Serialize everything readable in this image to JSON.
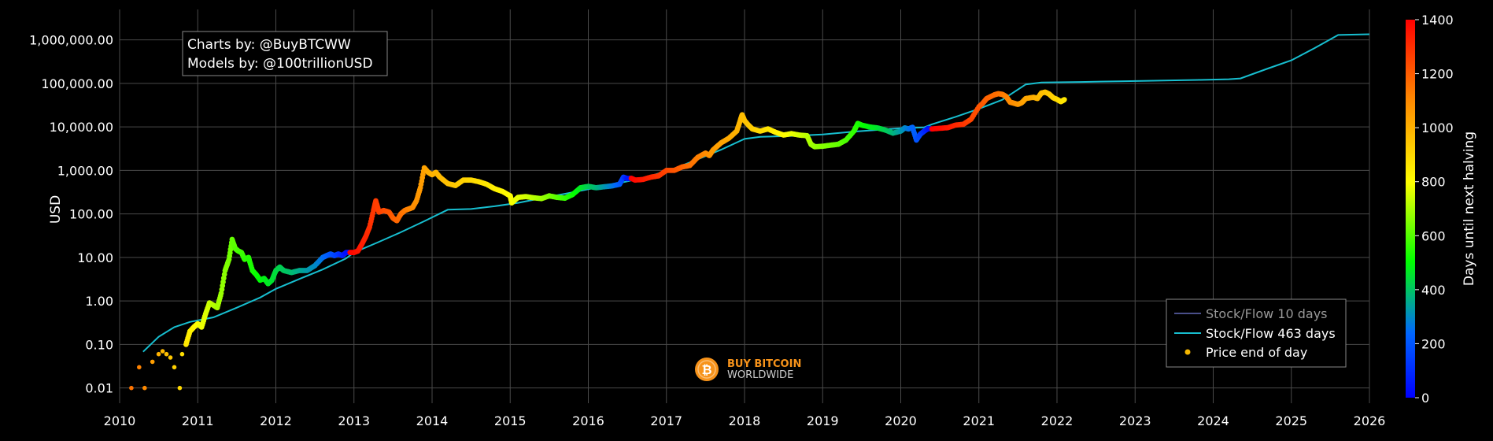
{
  "credits": {
    "line1": "Charts by: @BuyBTCWW",
    "line2": "Models by: @100trillionUSD"
  },
  "logo": {
    "line1": "BUY BITCOIN",
    "line2": "WORLDWIDE",
    "icon": "bitcoin-icon",
    "color": "#f7931a"
  },
  "chart_data": {
    "type": "scatter",
    "ylabel": "USD",
    "yscale": "log",
    "xlim": [
      2010,
      2026
    ],
    "ylim_log10": [
      -2.35,
      6.7
    ],
    "x_ticks": [
      "2010",
      "2011",
      "2012",
      "2013",
      "2014",
      "2015",
      "2016",
      "2017",
      "2018",
      "2019",
      "2020",
      "2021",
      "2022",
      "2023",
      "2024",
      "2025",
      "2026"
    ],
    "y_ticks": [
      {
        "value": 0.01,
        "label": "0.01"
      },
      {
        "value": 0.1,
        "label": "0.10"
      },
      {
        "value": 1,
        "label": "1.00"
      },
      {
        "value": 10,
        "label": "10.00"
      },
      {
        "value": 100,
        "label": "100.00"
      },
      {
        "value": 1000,
        "label": "1,000.00"
      },
      {
        "value": 10000,
        "label": "10,000.00"
      },
      {
        "value": 100000,
        "label": "100,000.00"
      },
      {
        "value": 1000000,
        "label": "1,000,000.00"
      }
    ],
    "grid": true,
    "legend_position": "bottom-right",
    "colorbar": {
      "title": "Days until next halving",
      "min": 0,
      "max": 1400,
      "ticks": [
        "0",
        "200",
        "400",
        "600",
        "800",
        "1000",
        "1200",
        "1400"
      ]
    },
    "series": [
      {
        "name": "Stock/Flow 10 days",
        "kind": "line",
        "color": "#4a4f8a",
        "points": []
      },
      {
        "name": "Stock/Flow 463 days",
        "kind": "line",
        "color": "#17becf",
        "points": [
          [
            2010.3,
            0.068
          ],
          [
            2010.5,
            0.15
          ],
          [
            2010.7,
            0.25
          ],
          [
            2010.9,
            0.33
          ],
          [
            2011.2,
            0.42
          ],
          [
            2011.5,
            0.7
          ],
          [
            2011.8,
            1.2
          ],
          [
            2012.0,
            1.9
          ],
          [
            2012.3,
            3.2
          ],
          [
            2012.6,
            5.3
          ],
          [
            2012.9,
            9.5
          ],
          [
            2013.0,
            13
          ],
          [
            2013.3,
            22
          ],
          [
            2013.6,
            38
          ],
          [
            2013.9,
            68
          ],
          [
            2014.2,
            125
          ],
          [
            2014.5,
            130
          ],
          [
            2014.8,
            150
          ],
          [
            2015.1,
            180
          ],
          [
            2015.4,
            230
          ],
          [
            2015.7,
            290
          ],
          [
            2016.0,
            370
          ],
          [
            2016.3,
            470
          ],
          [
            2016.5,
            560
          ],
          [
            2016.8,
            750
          ],
          [
            2017.1,
            1100
          ],
          [
            2017.4,
            1800
          ],
          [
            2017.7,
            3000
          ],
          [
            2018.0,
            5300
          ],
          [
            2018.2,
            5900
          ],
          [
            2018.6,
            6200
          ],
          [
            2019.0,
            6700
          ],
          [
            2019.4,
            7800
          ],
          [
            2019.8,
            8800
          ],
          [
            2020.0,
            9300
          ],
          [
            2020.3,
            9800
          ],
          [
            2020.4,
            11500
          ],
          [
            2020.7,
            17000
          ],
          [
            2021.0,
            26000
          ],
          [
            2021.3,
            42000
          ],
          [
            2021.6,
            95000
          ],
          [
            2021.8,
            105000
          ],
          [
            2022.3,
            108000
          ],
          [
            2022.8,
            112000
          ],
          [
            2023.3,
            116000
          ],
          [
            2023.8,
            120000
          ],
          [
            2024.2,
            125000
          ],
          [
            2024.35,
            130000
          ],
          [
            2024.7,
            220000
          ],
          [
            2025.0,
            340000
          ],
          [
            2025.3,
            650000
          ],
          [
            2025.6,
            1300000
          ],
          [
            2026.0,
            1350000
          ]
        ]
      },
      {
        "name": "Price end of day",
        "kind": "scatter",
        "color": "#f5b700",
        "points": [
          [
            2010.15,
            0.01,
            1150
          ],
          [
            2010.25,
            0.03,
            1120
          ],
          [
            2010.32,
            0.01,
            1100
          ],
          [
            2010.42,
            0.04,
            1050
          ],
          [
            2010.5,
            0.06,
            1000
          ],
          [
            2010.55,
            0.07,
            980
          ],
          [
            2010.6,
            0.06,
            960
          ],
          [
            2010.65,
            0.05,
            940
          ],
          [
            2010.7,
            0.03,
            920
          ],
          [
            2010.77,
            0.01,
            900
          ],
          [
            2010.8,
            0.06,
            880
          ],
          [
            2010.85,
            0.1,
            860
          ],
          [
            2010.9,
            0.2,
            840
          ],
          [
            2010.95,
            0.25,
            820
          ],
          [
            2011.0,
            0.3,
            800
          ],
          [
            2011.05,
            0.25,
            780
          ],
          [
            2011.1,
            0.5,
            760
          ],
          [
            2011.15,
            0.9,
            740
          ],
          [
            2011.2,
            0.8,
            720
          ],
          [
            2011.25,
            0.7,
            700
          ],
          [
            2011.3,
            1.5,
            680
          ],
          [
            2011.35,
            5,
            660
          ],
          [
            2011.4,
            9,
            640
          ],
          [
            2011.44,
            26,
            620
          ],
          [
            2011.48,
            16,
            605
          ],
          [
            2011.52,
            14,
            590
          ],
          [
            2011.56,
            13,
            575
          ],
          [
            2011.6,
            9,
            560
          ],
          [
            2011.65,
            10,
            545
          ],
          [
            2011.7,
            5,
            530
          ],
          [
            2011.75,
            4,
            515
          ],
          [
            2011.8,
            3,
            500
          ],
          [
            2011.85,
            3.3,
            485
          ],
          [
            2011.9,
            2.5,
            470
          ],
          [
            2011.95,
            3,
            455
          ],
          [
            2012.0,
            5,
            440
          ],
          [
            2012.05,
            6,
            425
          ],
          [
            2012.1,
            5,
            410
          ],
          [
            2012.2,
            4.5,
            390
          ],
          [
            2012.3,
            5,
            360
          ],
          [
            2012.4,
            5,
            330
          ],
          [
            2012.5,
            6.5,
            300
          ],
          [
            2012.6,
            10,
            260
          ],
          [
            2012.65,
            11,
            230
          ],
          [
            2012.7,
            12,
            200
          ],
          [
            2012.75,
            11,
            170
          ],
          [
            2012.8,
            12,
            130
          ],
          [
            2012.85,
            11,
            90
          ],
          [
            2012.9,
            13,
            30
          ],
          [
            2012.95,
            13,
            1400
          ],
          [
            2013.0,
            13,
            1380
          ],
          [
            2013.05,
            14,
            1360
          ],
          [
            2013.1,
            20,
            1340
          ],
          [
            2013.15,
            30,
            1320
          ],
          [
            2013.2,
            50,
            1300
          ],
          [
            2013.25,
            120,
            1280
          ],
          [
            2013.28,
            200,
            1270
          ],
          [
            2013.32,
            110,
            1260
          ],
          [
            2013.38,
            120,
            1240
          ],
          [
            2013.45,
            110,
            1220
          ],
          [
            2013.5,
            80,
            1200
          ],
          [
            2013.55,
            70,
            1180
          ],
          [
            2013.6,
            100,
            1160
          ],
          [
            2013.65,
            120,
            1140
          ],
          [
            2013.7,
            130,
            1120
          ],
          [
            2013.75,
            140,
            1100
          ],
          [
            2013.8,
            200,
            1080
          ],
          [
            2013.85,
            400,
            1060
          ],
          [
            2013.9,
            1150,
            1040
          ],
          [
            2013.95,
            900,
            1020
          ],
          [
            2014.0,
            800,
            1000
          ],
          [
            2014.05,
            900,
            990
          ],
          [
            2014.1,
            700,
            980
          ],
          [
            2014.2,
            500,
            960
          ],
          [
            2014.3,
            450,
            940
          ],
          [
            2014.4,
            600,
            920
          ],
          [
            2014.5,
            600,
            900
          ],
          [
            2014.6,
            550,
            880
          ],
          [
            2014.7,
            480,
            860
          ],
          [
            2014.8,
            380,
            840
          ],
          [
            2014.9,
            330,
            820
          ],
          [
            2015.0,
            260,
            800
          ],
          [
            2015.02,
            180,
            790
          ],
          [
            2015.1,
            240,
            770
          ],
          [
            2015.2,
            250,
            750
          ],
          [
            2015.3,
            235,
            720
          ],
          [
            2015.4,
            225,
            690
          ],
          [
            2015.5,
            260,
            650
          ],
          [
            2015.6,
            240,
            610
          ],
          [
            2015.7,
            230,
            570
          ],
          [
            2015.8,
            280,
            520
          ],
          [
            2015.9,
            400,
            470
          ],
          [
            2016.0,
            430,
            420
          ],
          [
            2016.1,
            400,
            380
          ],
          [
            2016.2,
            420,
            330
          ],
          [
            2016.3,
            440,
            280
          ],
          [
            2016.4,
            480,
            220
          ],
          [
            2016.45,
            700,
            150
          ],
          [
            2016.5,
            650,
            50
          ],
          [
            2016.55,
            660,
            1400
          ],
          [
            2016.6,
            600,
            1380
          ],
          [
            2016.7,
            620,
            1350
          ],
          [
            2016.8,
            700,
            1320
          ],
          [
            2016.9,
            750,
            1290
          ],
          [
            2017.0,
            1000,
            1250
          ],
          [
            2017.1,
            1000,
            1220
          ],
          [
            2017.2,
            1200,
            1190
          ],
          [
            2017.3,
            1300,
            1160
          ],
          [
            2017.4,
            2000,
            1130
          ],
          [
            2017.5,
            2500,
            1100
          ],
          [
            2017.55,
            2200,
            1080
          ],
          [
            2017.6,
            3000,
            1060
          ],
          [
            2017.7,
            4300,
            1040
          ],
          [
            2017.8,
            5500,
            1020
          ],
          [
            2017.9,
            8000,
            1000
          ],
          [
            2017.95,
            15000,
            980
          ],
          [
            2017.97,
            19000,
            975
          ],
          [
            2018.0,
            14000,
            960
          ],
          [
            2018.05,
            11000,
            950
          ],
          [
            2018.1,
            9000,
            930
          ],
          [
            2018.2,
            8000,
            900
          ],
          [
            2018.3,
            9000,
            870
          ],
          [
            2018.4,
            7500,
            840
          ],
          [
            2018.5,
            6500,
            810
          ],
          [
            2018.6,
            7000,
            780
          ],
          [
            2018.7,
            6500,
            750
          ],
          [
            2018.8,
            6300,
            720
          ],
          [
            2018.85,
            4000,
            700
          ],
          [
            2018.9,
            3500,
            680
          ],
          [
            2019.0,
            3600,
            660
          ],
          [
            2019.1,
            3800,
            640
          ],
          [
            2019.2,
            4000,
            620
          ],
          [
            2019.3,
            5000,
            590
          ],
          [
            2019.4,
            8000,
            560
          ],
          [
            2019.45,
            12000,
            540
          ],
          [
            2019.5,
            11000,
            520
          ],
          [
            2019.6,
            10000,
            490
          ],
          [
            2019.7,
            9500,
            460
          ],
          [
            2019.8,
            8500,
            420
          ],
          [
            2019.9,
            7200,
            380
          ],
          [
            2020.0,
            8000,
            330
          ],
          [
            2020.05,
            9500,
            300
          ],
          [
            2020.1,
            9000,
            270
          ],
          [
            2020.15,
            9800,
            240
          ],
          [
            2020.2,
            5000,
            200
          ],
          [
            2020.25,
            6800,
            160
          ],
          [
            2020.3,
            8000,
            100
          ],
          [
            2020.35,
            9200,
            40
          ],
          [
            2020.4,
            9000,
            1400
          ],
          [
            2020.5,
            9300,
            1380
          ],
          [
            2020.6,
            9600,
            1350
          ],
          [
            2020.7,
            11000,
            1320
          ],
          [
            2020.8,
            11500,
            1290
          ],
          [
            2020.9,
            15000,
            1250
          ],
          [
            2021.0,
            29000,
            1220
          ],
          [
            2021.05,
            35000,
            1210
          ],
          [
            2021.1,
            45000,
            1190
          ],
          [
            2021.2,
            55000,
            1170
          ],
          [
            2021.25,
            58000,
            1160
          ],
          [
            2021.3,
            56000,
            1140
          ],
          [
            2021.35,
            50000,
            1120
          ],
          [
            2021.4,
            37000,
            1100
          ],
          [
            2021.45,
            35000,
            1090
          ],
          [
            2021.5,
            33000,
            1070
          ],
          [
            2021.55,
            36000,
            1050
          ],
          [
            2021.6,
            45000,
            1030
          ],
          [
            2021.7,
            48000,
            1010
          ],
          [
            2021.75,
            45000,
            990
          ],
          [
            2021.8,
            60000,
            970
          ],
          [
            2021.85,
            63000,
            960
          ],
          [
            2021.9,
            57000,
            940
          ],
          [
            2021.95,
            47000,
            920
          ],
          [
            2022.0,
            43000,
            900
          ],
          [
            2022.05,
            38000,
            880
          ],
          [
            2022.1,
            43000,
            860
          ]
        ]
      }
    ]
  }
}
